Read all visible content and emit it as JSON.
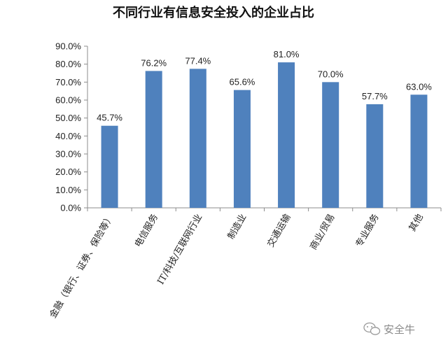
{
  "chart_data": {
    "type": "bar",
    "title": "不同行业有信息安全投入的企业占比",
    "xlabel": "",
    "ylabel": "",
    "categories": [
      "金融（银行、证券、保险等）",
      "电信服务",
      "IT/科技/互联网行业",
      "制造业",
      "交通运输",
      "商业/贸易",
      "专业服务",
      "其他"
    ],
    "values": [
      45.7,
      76.2,
      77.4,
      65.6,
      81.0,
      70.0,
      57.7,
      63.0
    ],
    "data_labels": [
      "45.7%",
      "76.2%",
      "77.4%",
      "65.6%",
      "81.0%",
      "70.0%",
      "57.7%",
      "63.0%"
    ],
    "ylim": [
      0,
      90
    ],
    "yticks": [
      0,
      10,
      20,
      30,
      40,
      50,
      60,
      70,
      80,
      90
    ],
    "ytick_labels": [
      "0.0%",
      "10.0%",
      "20.0%",
      "30.0%",
      "40.0%",
      "50.0%",
      "60.0%",
      "70.0%",
      "80.0%",
      "90.0%"
    ],
    "grid": false,
    "legend": "none",
    "bar_color": "#4f81bd"
  },
  "watermark": {
    "text": "安全牛",
    "icon": "wechat-icon"
  }
}
